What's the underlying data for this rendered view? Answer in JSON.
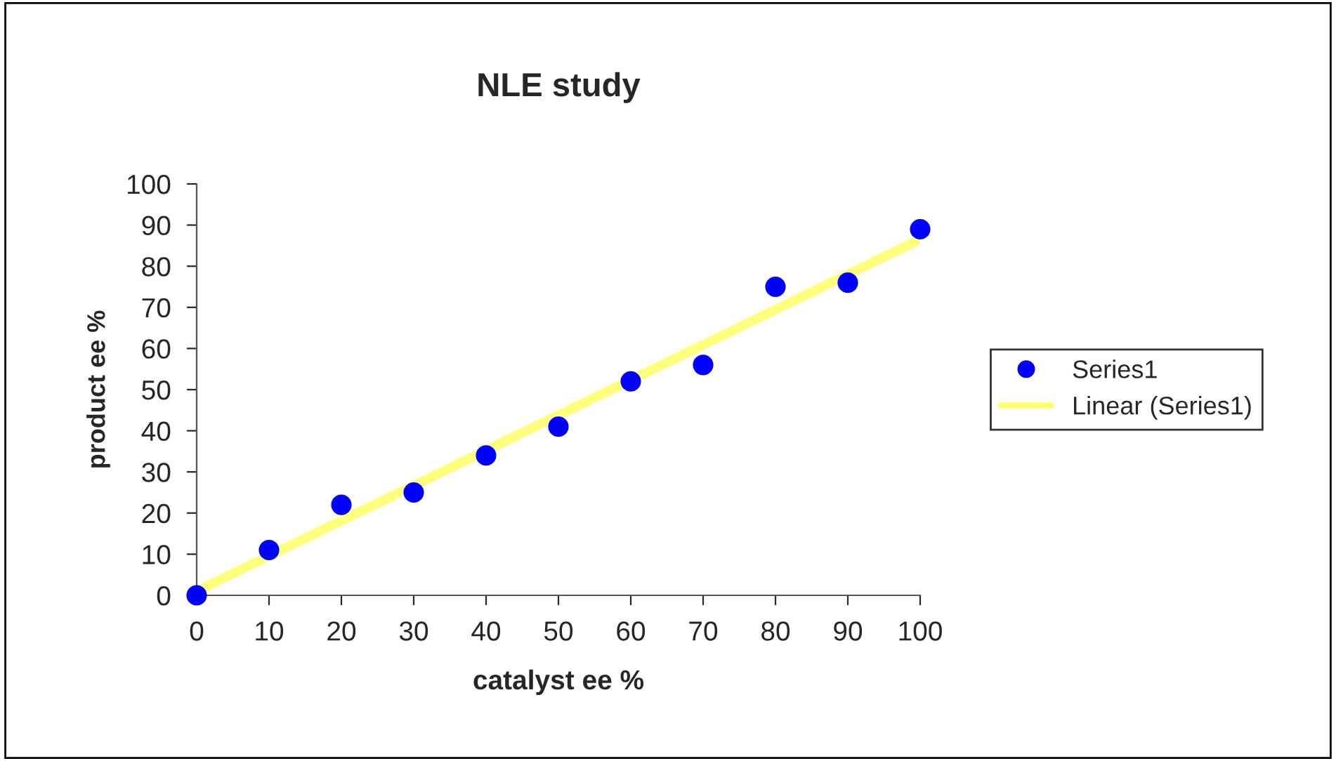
{
  "chart_data": {
    "type": "scatter",
    "title": "NLE study",
    "xlabel": "catalyst ee %",
    "ylabel": "product ee %",
    "x": [
      0,
      10,
      20,
      30,
      40,
      50,
      60,
      70,
      80,
      90,
      100
    ],
    "series": [
      {
        "name": "Series1",
        "marker": "circle",
        "color": "#0000ff",
        "values": [
          0,
          11,
          22,
          25,
          34,
          41,
          52,
          56,
          75,
          76,
          89
        ]
      },
      {
        "name": "Linear (Series1)",
        "type": "line",
        "marker": "none",
        "color": "#ffff66",
        "x": [
          0,
          100
        ],
        "values": [
          1,
          86.5
        ]
      }
    ],
    "xlim": [
      0,
      100
    ],
    "xticks": [
      0,
      10,
      20,
      30,
      40,
      50,
      60,
      70,
      80,
      90,
      100
    ],
    "ylim": [
      0,
      100
    ],
    "yticks": [
      0,
      10,
      20,
      30,
      40,
      50,
      60,
      70,
      80,
      90,
      100
    ],
    "grid": false,
    "legend": "right"
  }
}
